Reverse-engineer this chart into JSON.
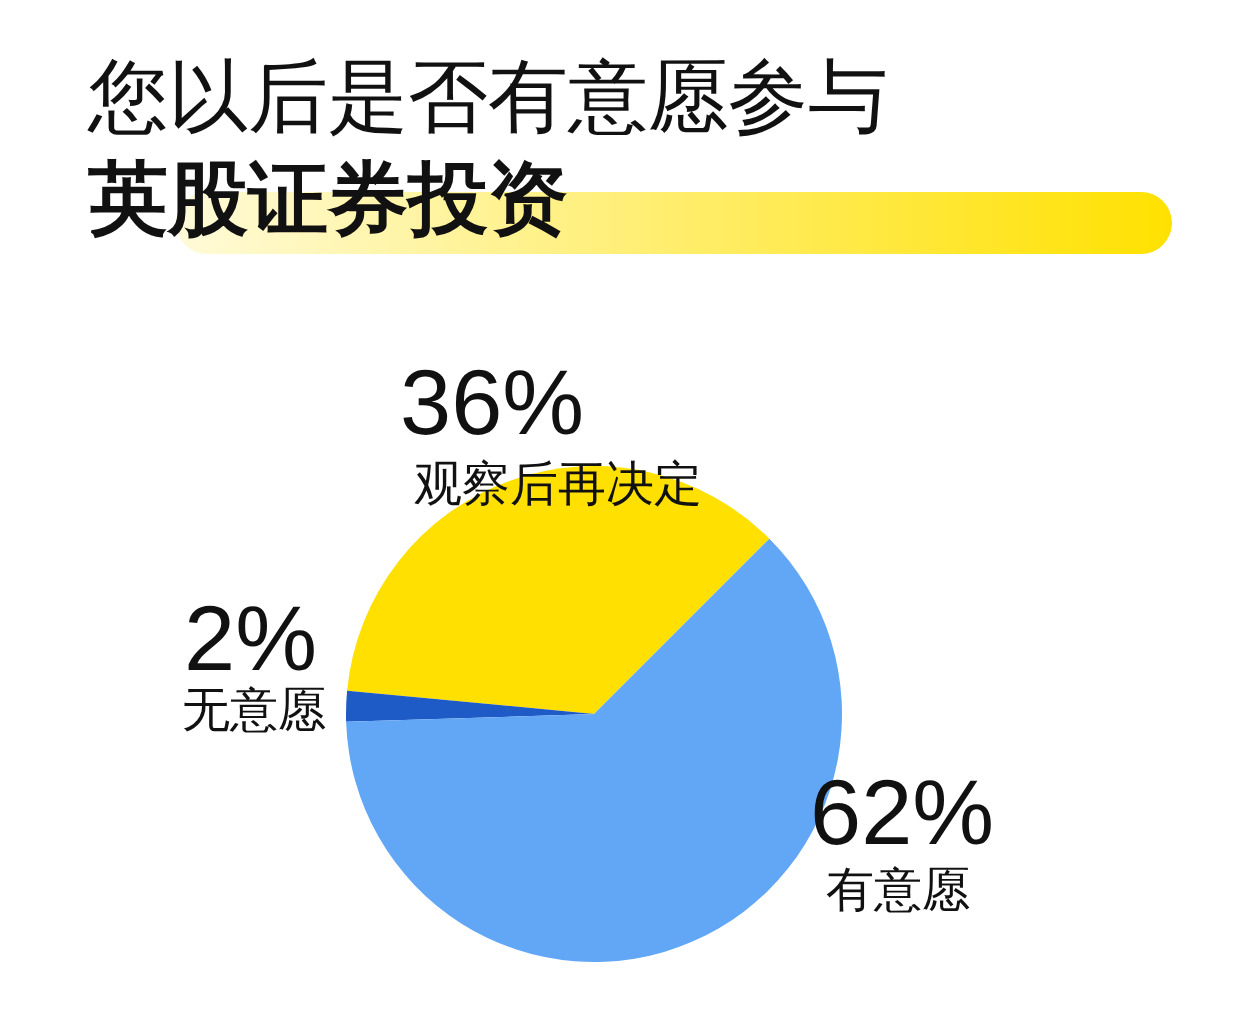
{
  "chart_data": {
    "type": "pie",
    "title": "您以后是否有意愿参与",
    "subtitle": "英股证券投资",
    "categories": [
      "观察后再决定",
      "无意愿",
      "有意愿"
    ],
    "values": [
      36,
      2,
      62
    ],
    "colors": [
      "#ffe000",
      "#1e5bc6",
      "#62a7f5"
    ],
    "value_labels": [
      "36%",
      "2%",
      "62%"
    ]
  }
}
